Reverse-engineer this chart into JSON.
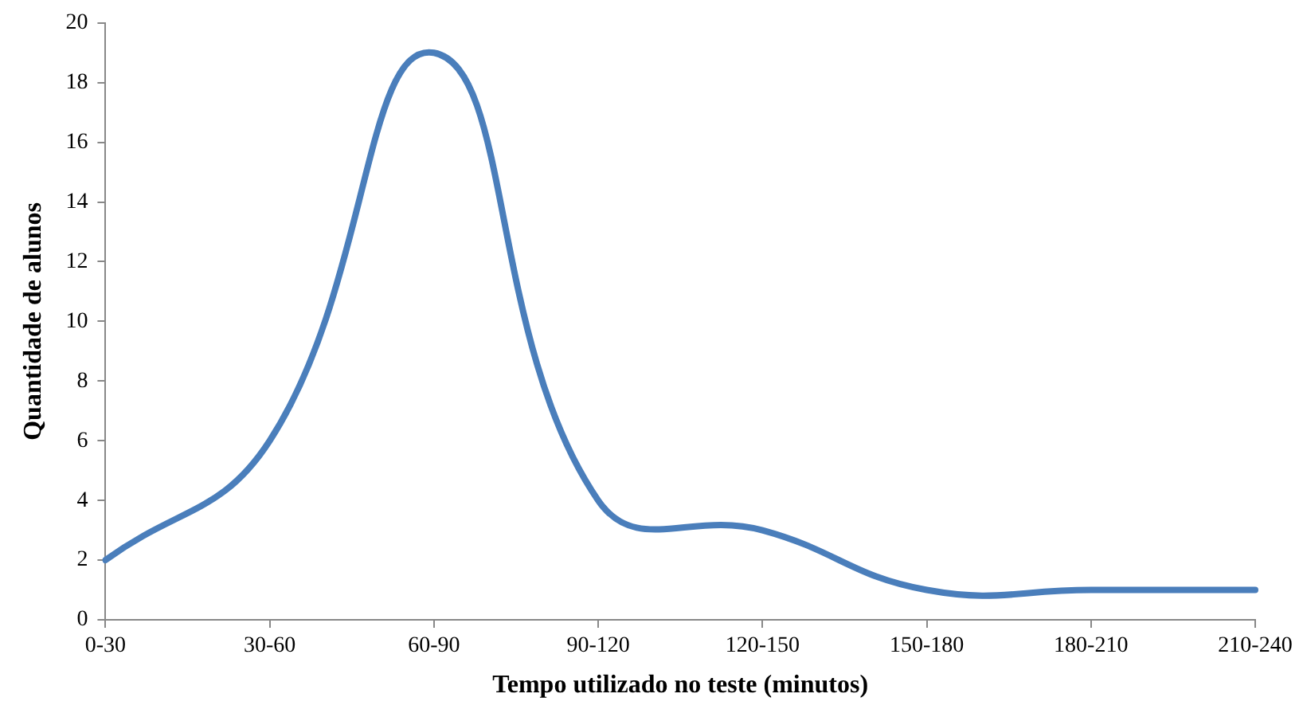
{
  "chart_data": {
    "type": "line",
    "xlabel": "Tempo utilizado no teste (minutos)",
    "ylabel": "Quantidade de alunos",
    "categories": [
      "0-30",
      "30-60",
      "60-90",
      "90-120",
      "120-150",
      "150-180",
      "180-210",
      "210-240"
    ],
    "series": [
      {
        "color": "#4a7ebb",
        "values": [
          2,
          6,
          19,
          4,
          3,
          1,
          1,
          1
        ]
      }
    ],
    "ylim": [
      0,
      20
    ],
    "yticks": [
      0,
      2,
      4,
      6,
      8,
      10,
      12,
      14,
      16,
      18,
      20
    ],
    "grid": false,
    "legend": false,
    "marker": "none",
    "line_style": "solid"
  }
}
